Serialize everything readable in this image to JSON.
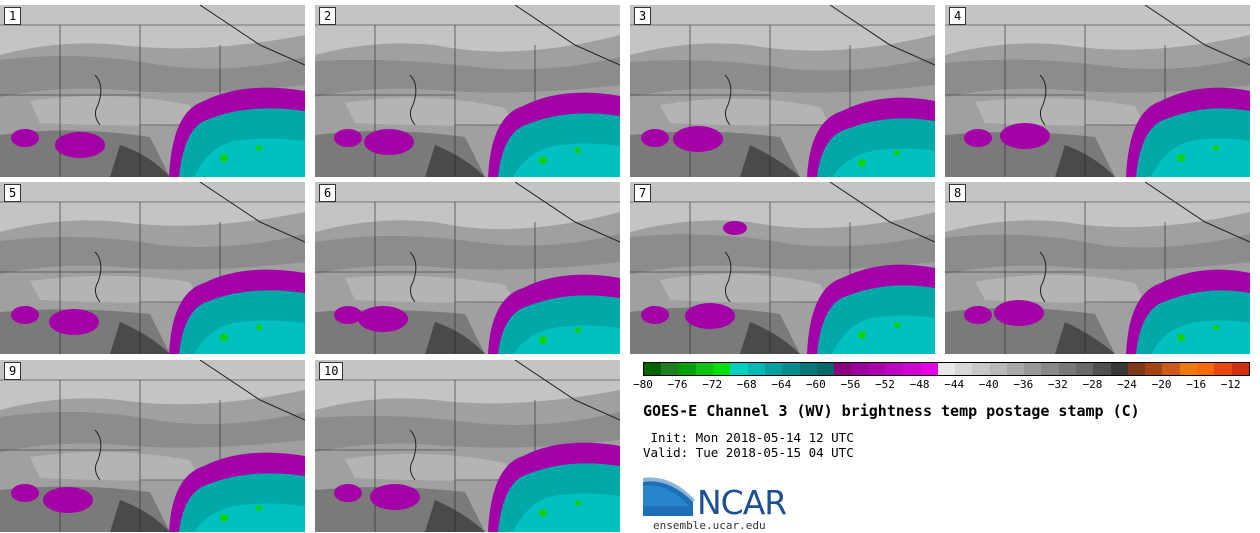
{
  "panels": [
    {
      "label": "1"
    },
    {
      "label": "2"
    },
    {
      "label": "3"
    },
    {
      "label": "4"
    },
    {
      "label": "5"
    },
    {
      "label": "6"
    },
    {
      "label": "7"
    },
    {
      "label": "8"
    },
    {
      "label": "9"
    },
    {
      "label": "10"
    }
  ],
  "colorbar": {
    "colors": [
      "#006400",
      "#1f7f1f",
      "#00a000",
      "#10c010",
      "#00e000",
      "#00d0c0",
      "#00b8b8",
      "#00a0a0",
      "#008c8c",
      "#007878",
      "#006868",
      "#8a0080",
      "#9a009a",
      "#aa00aa",
      "#be00c0",
      "#d000d0",
      "#e600e6",
      "#e8e8e8",
      "#d8d8d8",
      "#c8c8c8",
      "#b8b8b8",
      "#a8a8a8",
      "#989898",
      "#888888",
      "#787878",
      "#686868",
      "#505050",
      "#383838",
      "#7a3a1a",
      "#a24414",
      "#cc5a1a",
      "#ee7a10",
      "#ff6a00",
      "#e84810",
      "#d03010"
    ],
    "ticks": [
      "−80",
      "−76",
      "−72",
      "−68",
      "−64",
      "−60",
      "−56",
      "−52",
      "−48",
      "−44",
      "−40",
      "−36",
      "−32",
      "−28",
      "−24",
      "−20",
      "−16",
      "−12"
    ],
    "min": -80,
    "max": -10
  },
  "title": "GOES-E Channel 3 (WV) brightness temp postage stamp (C)",
  "init": " Init: Mon 2018-05-14 12 UTC",
  "valid": "Valid: Tue 2018-05-15 04 UTC",
  "logo": {
    "word": "NCAR",
    "url": "ensemble.ucar.edu",
    "color": "#1d4f91"
  }
}
